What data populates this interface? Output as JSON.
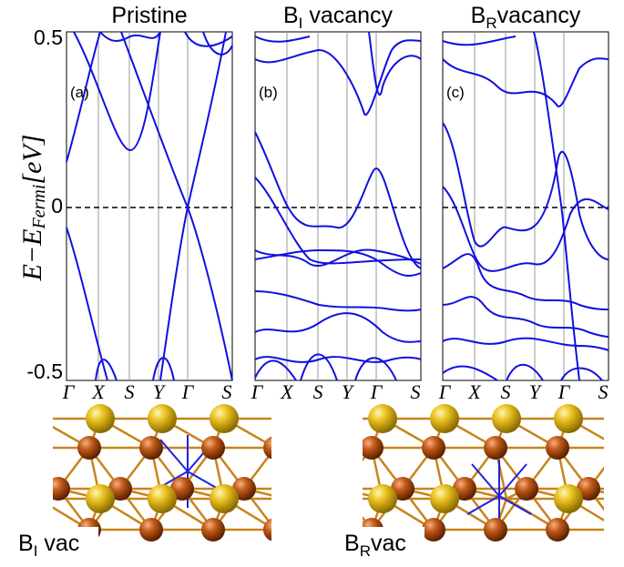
{
  "panels": [
    {
      "title": {
        "main": "Pristine"
      },
      "tag": "(a)"
    },
    {
      "title": {
        "main": "B",
        "sub": "I",
        "rest": " vacancy"
      },
      "tag": "(b)"
    },
    {
      "title": {
        "main": "B",
        "sub": "R",
        "rest": "vacancy"
      },
      "tag": "(c)"
    }
  ],
  "y_axis": {
    "label": {
      "main": "E−E",
      "sub": "Fermi",
      "rest": "[eV]"
    },
    "ticks": [
      "0.5",
      "0",
      "-0.5"
    ]
  },
  "k_path": [
    "Γ",
    "X",
    "S",
    "Y",
    "Γ",
    "S"
  ],
  "structures": [
    {
      "main": "B",
      "sub": "I",
      "rest": " vac"
    },
    {
      "main": "B",
      "sub": "R",
      "rest": "vac"
    }
  ]
}
